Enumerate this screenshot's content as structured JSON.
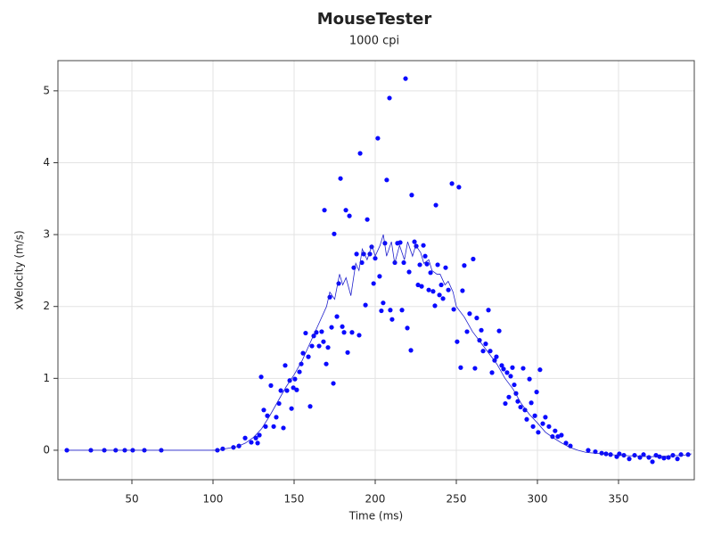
{
  "chart_data": {
    "type": "scatter",
    "title": "MouseTester",
    "subtitle": "1000 cpi",
    "x_label": "Time (ms)",
    "y_label": "xVelocity (m/s)",
    "xlim": [
      4.4,
      396.7
    ],
    "ylim": [
      -0.41,
      5.42
    ],
    "xticks": [
      50,
      100,
      150,
      200,
      250,
      300,
      350
    ],
    "yticks": [
      0,
      1,
      2,
      3,
      4,
      5
    ],
    "grid": true,
    "series": [
      {
        "type": "scatter",
        "color": "#0a0aff",
        "x": [
          9.9,
          24.7,
          33,
          40,
          45.6,
          50.5,
          57.7,
          68.1,
          102.7,
          106,
          112.6,
          116,
          119.8,
          123.6,
          126.4,
          127.5,
          128.6,
          129.7,
          131.3,
          132.4,
          133.5,
          135.7,
          137.4,
          139,
          140.7,
          141.8,
          143.4,
          144.5,
          145.6,
          147.3,
          148.4,
          149.5,
          150.5,
          151.6,
          153.3,
          154.4,
          155.5,
          157.1,
          158.8,
          159.9,
          161,
          162.1,
          163.7,
          165.4,
          167,
          168.1,
          168.7,
          169.8,
          170.9,
          172,
          173.1,
          174.2,
          174.7,
          176.4,
          177.5,
          178.6,
          179.7,
          180.8,
          181.9,
          183,
          184.1,
          185.7,
          186.8,
          188.5,
          190.1,
          190.7,
          191.8,
          192.9,
          194,
          195.1,
          196.7,
          197.8,
          199,
          200,
          201.6,
          202.7,
          203.8,
          204.9,
          206,
          207.1,
          208.8,
          209.3,
          210.4,
          212.1,
          213.7,
          215.4,
          216.5,
          217.6,
          218.7,
          219.8,
          220.9,
          222,
          222.5,
          224.2,
          225.3,
          226.4,
          227.5,
          228.6,
          229.7,
          230.8,
          231.9,
          233,
          234.1,
          235.7,
          236.8,
          237.4,
          238.5,
          239.6,
          240.7,
          241.8,
          243.4,
          245.1,
          247.3,
          248.4,
          250.5,
          251.6,
          252.7,
          253.8,
          254.9,
          256.6,
          258.2,
          260.4,
          261.5,
          262.6,
          264.3,
          265.4,
          266.5,
          268.1,
          269.8,
          270.9,
          272,
          273.6,
          274.7,
          276.4,
          278,
          279.1,
          280.2,
          281.3,
          282.4,
          283.5,
          284.6,
          285.7,
          286.8,
          287.9,
          289.6,
          291.2,
          292.3,
          293.4,
          295.1,
          296.2,
          297.3,
          298.4,
          299.5,
          300.5,
          301.6,
          303.3,
          304.9,
          307.1,
          309.3,
          310.9,
          312.6,
          314.8,
          317.6,
          320.3,
          331.3,
          335.7,
          339.6,
          342.3,
          345.1,
          348.9,
          350.5,
          353.3,
          356.6,
          359.9,
          363.2,
          365.4,
          368.7,
          370.9,
          373.1,
          375.3,
          378,
          380.8,
          383.5,
          386.3,
          388.5,
          392.9
        ],
        "values": [
          0,
          0,
          0,
          0,
          0,
          0,
          0,
          0,
          0,
          0.02,
          0.04,
          0.06,
          0.17,
          0.11,
          0.17,
          0.1,
          0.21,
          1.02,
          0.56,
          0.33,
          0.48,
          0.9,
          0.33,
          0.46,
          0.65,
          0.83,
          0.31,
          1.18,
          0.83,
          0.97,
          0.58,
          0.87,
          0.99,
          0.84,
          1.09,
          1.2,
          1.35,
          1.63,
          1.3,
          0.61,
          1.45,
          1.59,
          1.64,
          1.45,
          1.65,
          1.51,
          3.34,
          1.2,
          1.43,
          2.13,
          1.71,
          0.93,
          3.01,
          1.86,
          2.32,
          3.78,
          1.72,
          1.64,
          3.34,
          1.36,
          3.26,
          1.64,
          2.54,
          2.73,
          1.6,
          4.13,
          2.61,
          2.73,
          2.02,
          3.21,
          2.73,
          2.83,
          2.32,
          2.67,
          4.34,
          2.42,
          1.94,
          2.05,
          2.88,
          3.76,
          4.9,
          1.95,
          1.82,
          2.61,
          2.88,
          2.89,
          1.95,
          2.61,
          5.17,
          1.7,
          2.48,
          1.39,
          3.55,
          2.9,
          2.84,
          2.3,
          2.58,
          2.28,
          2.85,
          2.7,
          2.59,
          2.23,
          2.47,
          2.21,
          2.01,
          3.41,
          2.58,
          2.16,
          2.3,
          2.11,
          2.54,
          2.23,
          3.71,
          1.96,
          1.51,
          3.66,
          1.15,
          2.22,
          2.57,
          1.65,
          1.9,
          2.66,
          1.14,
          1.84,
          1.53,
          1.67,
          1.38,
          1.48,
          1.95,
          1.38,
          1.08,
          1.25,
          1.3,
          1.66,
          1.18,
          1.13,
          0.65,
          1.08,
          0.74,
          1.03,
          1.15,
          0.91,
          0.79,
          0.68,
          0.6,
          1.14,
          0.56,
          0.43,
          0.99,
          0.66,
          0.33,
          0.48,
          0.81,
          0.25,
          1.12,
          0.37,
          0.46,
          0.33,
          0.19,
          0.27,
          0.19,
          0.21,
          0.1,
          0.06,
          0,
          -0.02,
          -0.04,
          -0.05,
          -0.06,
          -0.09,
          -0.05,
          -0.07,
          -0.12,
          -0.07,
          -0.1,
          -0.06,
          -0.1,
          -0.16,
          -0.07,
          -0.09,
          -0.11,
          -0.1,
          -0.07,
          -0.12,
          -0.06,
          -0.06
        ]
      },
      {
        "type": "line",
        "color": "#2020cc",
        "x": [
          10,
          100,
          102,
          110,
          115,
          120,
          125,
          130,
          135,
          140,
          145,
          150,
          155,
          160,
          165,
          170,
          172,
          175,
          178,
          180,
          182,
          185,
          188,
          190,
          192,
          195,
          198,
          200,
          203,
          205,
          207,
          210,
          212,
          215,
          218,
          220,
          223,
          225,
          228,
          230,
          233,
          235,
          238,
          240,
          243,
          245,
          248,
          250,
          255,
          260,
          265,
          270,
          275,
          280,
          285,
          290,
          295,
          300,
          305,
          310,
          315,
          320,
          325,
          330,
          340,
          350,
          360,
          370,
          380,
          390,
          395
        ],
        "values": [
          0,
          0,
          0,
          0.03,
          0.05,
          0.1,
          0.18,
          0.3,
          0.48,
          0.68,
          0.88,
          1.05,
          1.25,
          1.5,
          1.75,
          2.0,
          2.2,
          2.1,
          2.45,
          2.3,
          2.4,
          2.15,
          2.6,
          2.5,
          2.8,
          2.65,
          2.85,
          2.7,
          2.85,
          3.0,
          2.7,
          2.9,
          2.6,
          2.85,
          2.65,
          2.9,
          2.7,
          2.85,
          2.75,
          2.6,
          2.65,
          2.5,
          2.45,
          2.45,
          2.3,
          2.35,
          2.2,
          2.0,
          1.85,
          1.65,
          1.5,
          1.35,
          1.2,
          1.0,
          0.85,
          0.65,
          0.5,
          0.38,
          0.25,
          0.17,
          0.1,
          0.04,
          0,
          -0.03,
          -0.05,
          -0.07,
          -0.08,
          -0.09,
          -0.08,
          -0.07,
          -0.05
        ]
      }
    ]
  }
}
